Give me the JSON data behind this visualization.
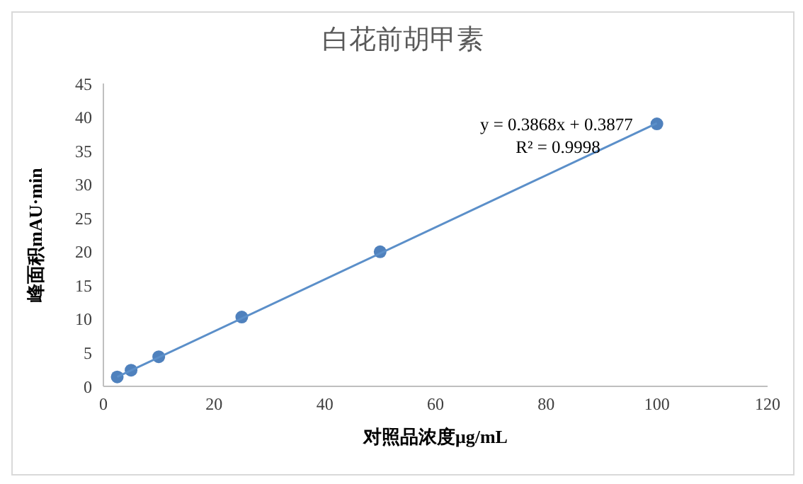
{
  "chart_data": {
    "type": "scatter",
    "title": "白花前胡甲素",
    "xlabel": "对照品浓度μg/mL",
    "ylabel": "峰面积mAU·min",
    "xlim": [
      0,
      120
    ],
    "xticks": [
      0,
      20,
      40,
      60,
      80,
      100,
      120
    ],
    "ylim": [
      0,
      45
    ],
    "yticks": [
      0,
      5,
      10,
      15,
      20,
      25,
      30,
      35,
      40,
      45
    ],
    "grid": false,
    "legend": false,
    "marker": "circle",
    "series": [
      {
        "color": "#4f81bd",
        "x": [
          2.5,
          5,
          10,
          25,
          50,
          100
        ],
        "values": [
          1.4,
          2.4,
          4.4,
          10.3,
          20.0,
          39.0
        ]
      },
      {
        "type": "line",
        "color": "#5b8fc9",
        "marker": "none",
        "x": [
          2.5,
          100
        ],
        "values": [
          1.4,
          39.1
        ]
      }
    ],
    "annotations": [
      "y = 0.3868x + 0.3877",
      "R² = 0.9998"
    ]
  }
}
